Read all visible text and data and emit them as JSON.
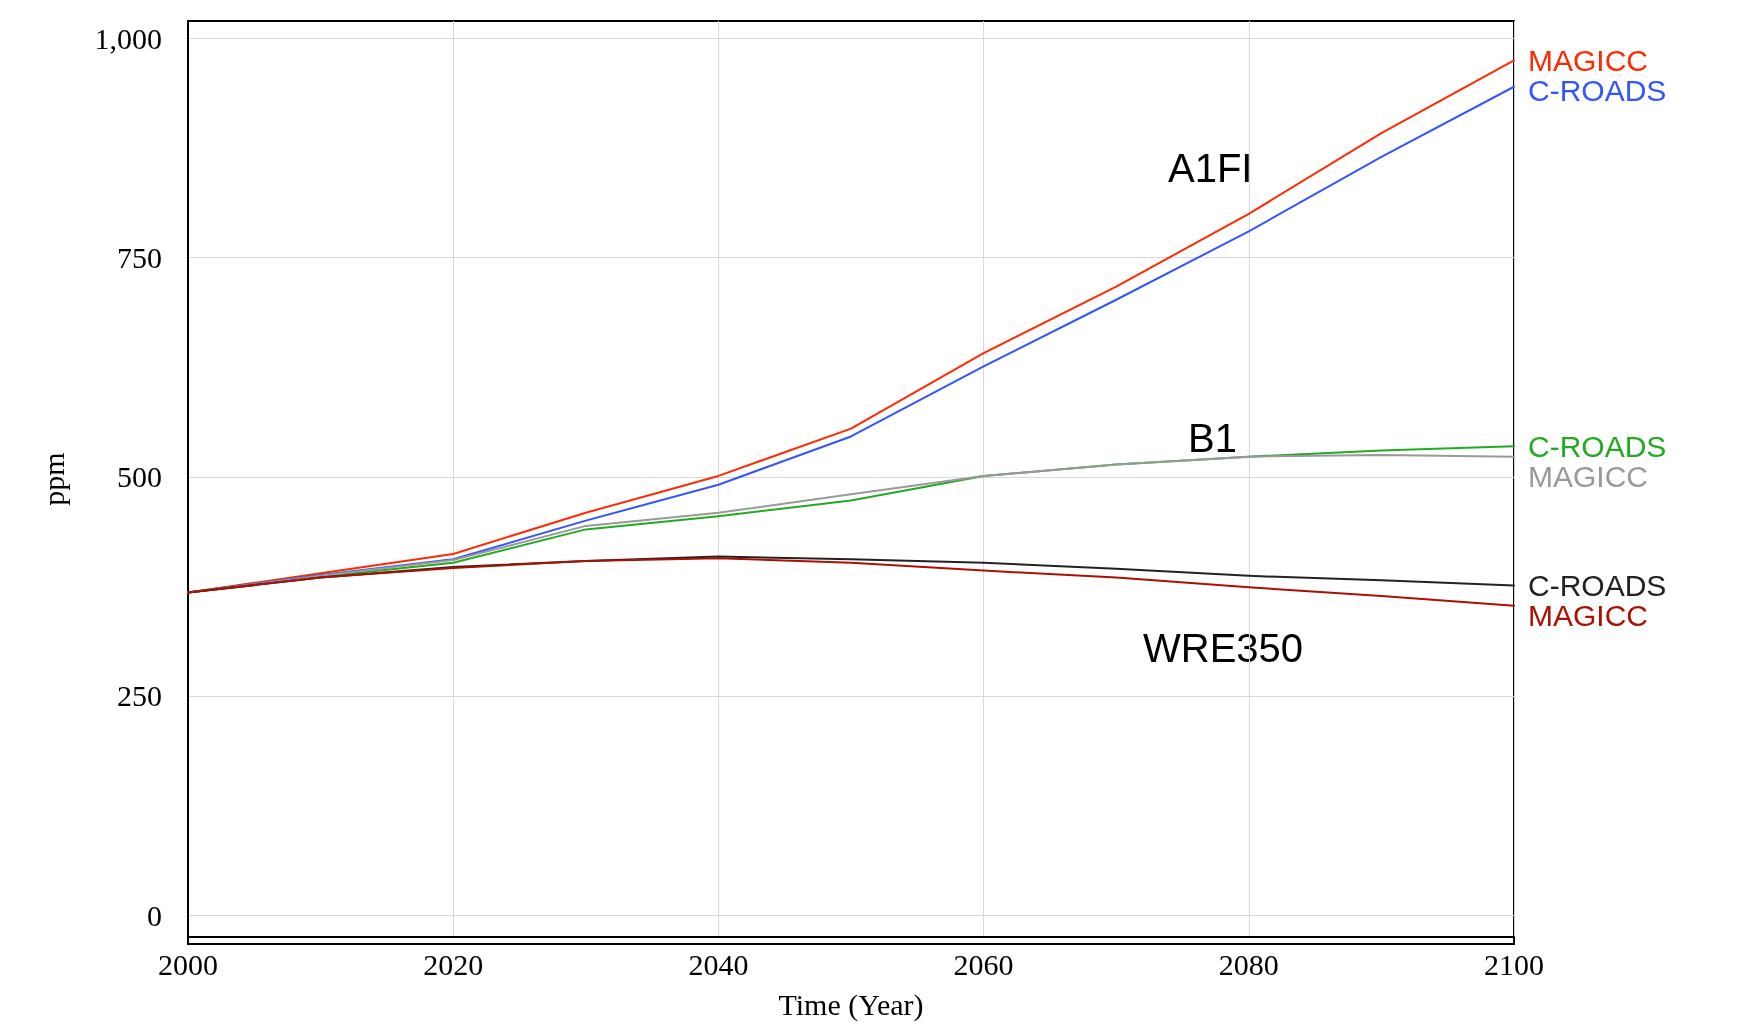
{
  "chart_data": {
    "type": "line",
    "xlabel": "Time (Year)",
    "ylabel": "ppm",
    "x": [
      2000,
      2010,
      2020,
      2030,
      2040,
      2050,
      2060,
      2070,
      2080,
      2090,
      2100
    ],
    "xlim": [
      2000,
      2100
    ],
    "xticks": [
      2000,
      2020,
      2040,
      2060,
      2080,
      2100
    ],
    "ylim": [
      -25,
      1020
    ],
    "yticks": [
      0,
      250,
      500,
      750,
      {
        "value": 1000,
        "label": "1,000"
      }
    ],
    "grid": true,
    "legend": false,
    "marker": "none",
    "line_style": "solid",
    "series": [
      {
        "name": "MAGICC",
        "color": "#ff2a00",
        "values": [
          368,
          390,
          412,
          459,
          501,
          555,
          641,
          717,
          800,
          892,
          975
        ]
      },
      {
        "name": "C-ROADS",
        "color": "#3355ff",
        "values": [
          368,
          388,
          406,
          450,
          491,
          546,
          626,
          702,
          780,
          865,
          945
        ]
      },
      {
        "name": "C-ROADS",
        "color": "#22aa22",
        "values": [
          368,
          386,
          402,
          440,
          455,
          473,
          501,
          514,
          523,
          530,
          535
        ]
      },
      {
        "name": "MAGICC",
        "color": "#999999",
        "values": [
          368,
          387,
          405,
          444,
          459,
          480,
          501,
          514,
          523,
          525,
          523
        ]
      },
      {
        "name": "C-ROADS",
        "color": "#222222",
        "values": [
          368,
          385,
          397,
          404,
          409,
          406,
          402,
          395,
          387,
          382,
          376
        ]
      },
      {
        "name": "MAGICC",
        "color": "#aa1100",
        "values": [
          368,
          385,
          396,
          404,
          407,
          402,
          393,
          385,
          374,
          364,
          353
        ]
      }
    ],
    "annotations": [
      "A1FI",
      "B1",
      "WRE350"
    ]
  }
}
